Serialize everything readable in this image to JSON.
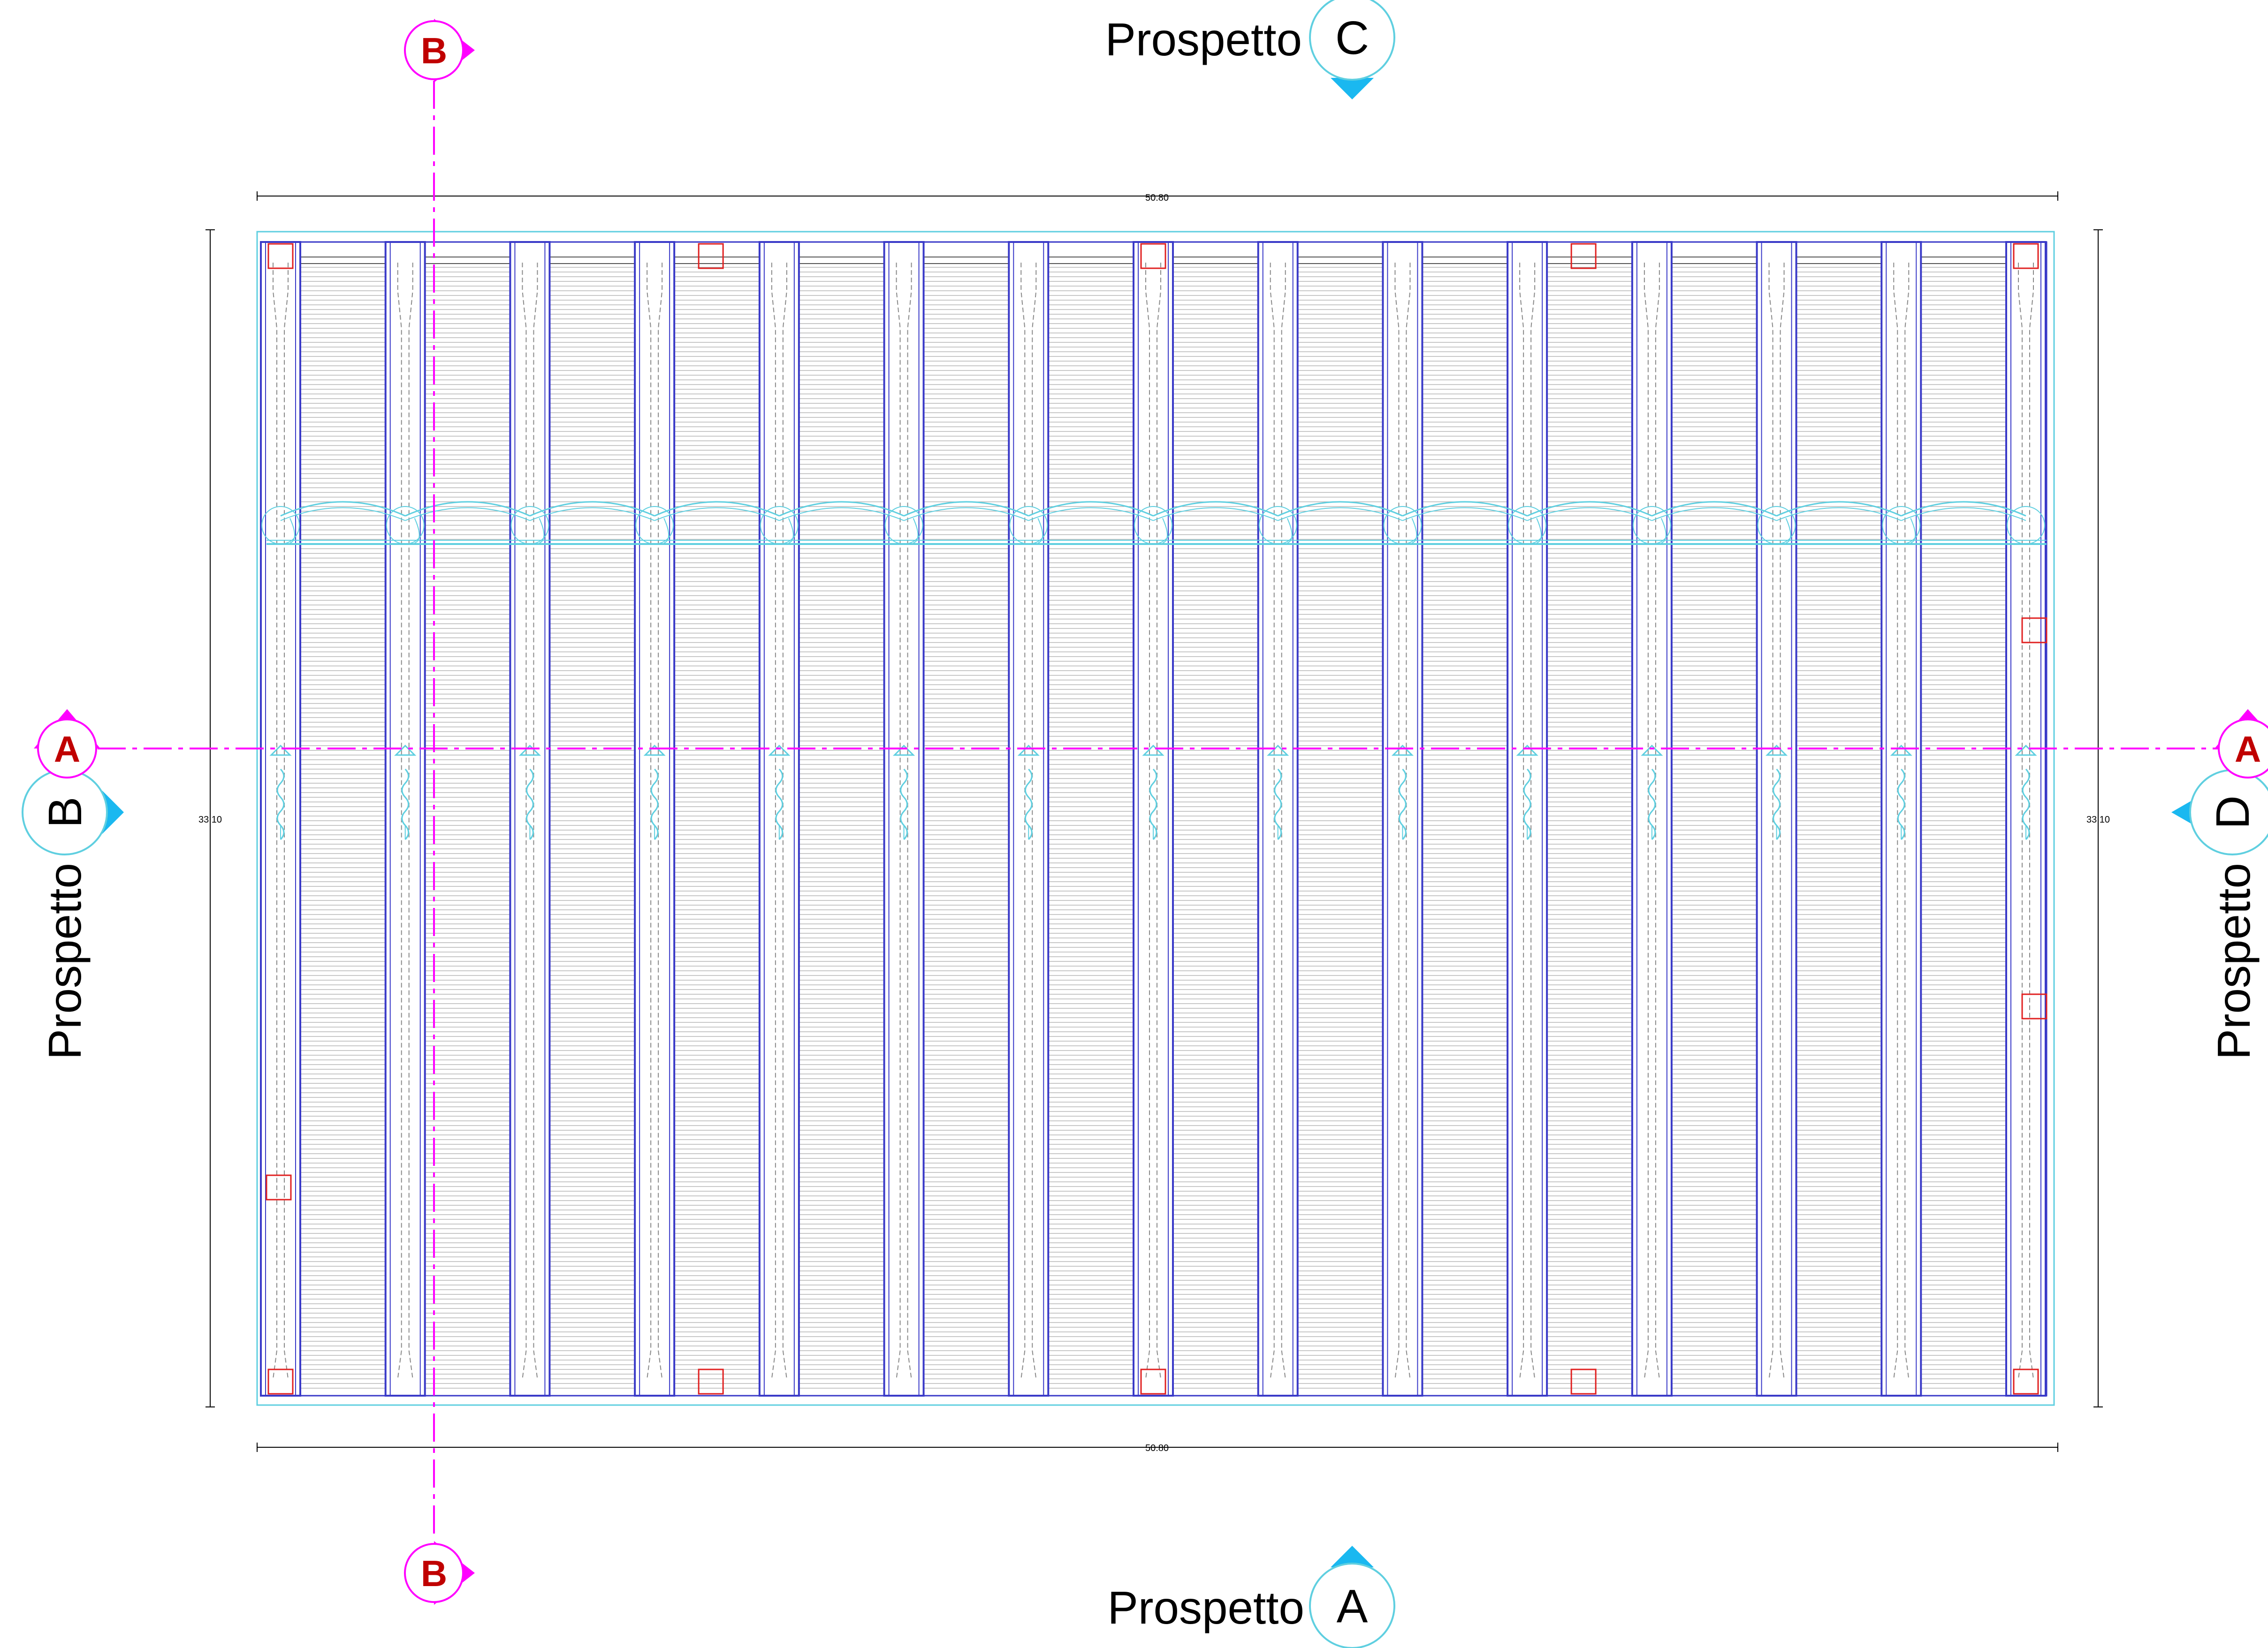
{
  "plan": {
    "dimensions": {
      "width": "50.80",
      "depth": "33.10"
    },
    "bays": 14,
    "frames": 15
  },
  "elevations": {
    "a": {
      "label": "Prospetto",
      "letter": "A"
    },
    "b": {
      "label": "Prospetto",
      "letter": "B"
    },
    "c": {
      "label": "Prospetto",
      "letter": "C"
    },
    "d": {
      "label": "Prospetto",
      "letter": "D"
    }
  },
  "sections": {
    "a": {
      "letter": "A"
    },
    "b": {
      "letter": "B"
    }
  },
  "colors": {
    "frame": "#3a3ac8",
    "outline": "#5fcfe0",
    "section": "#ff00ff",
    "marker": "#e02020",
    "elevation_marker": "#1ab8f0",
    "section_text": "#c00000",
    "purlins": "#a8a8a8"
  }
}
